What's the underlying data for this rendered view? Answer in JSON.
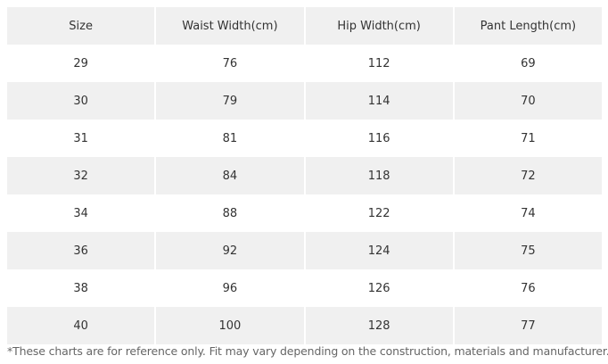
{
  "table": {
    "header": [
      "Size",
      "Waist Width(cm)",
      "Hip Width(cm)",
      "Pant Length(cm)"
    ],
    "rows": [
      [
        29,
        76,
        112,
        69
      ],
      [
        30,
        79,
        114,
        70
      ],
      [
        31,
        81,
        116,
        71
      ],
      [
        32,
        84,
        118,
        72
      ],
      [
        34,
        88,
        122,
        74
      ],
      [
        36,
        92,
        124,
        75
      ],
      [
        38,
        96,
        126,
        76
      ],
      [
        40,
        100,
        128,
        77
      ]
    ]
  },
  "footnote": "*These charts are for reference only. Fit may vary depending on the construction, materials and manufacturer."
}
